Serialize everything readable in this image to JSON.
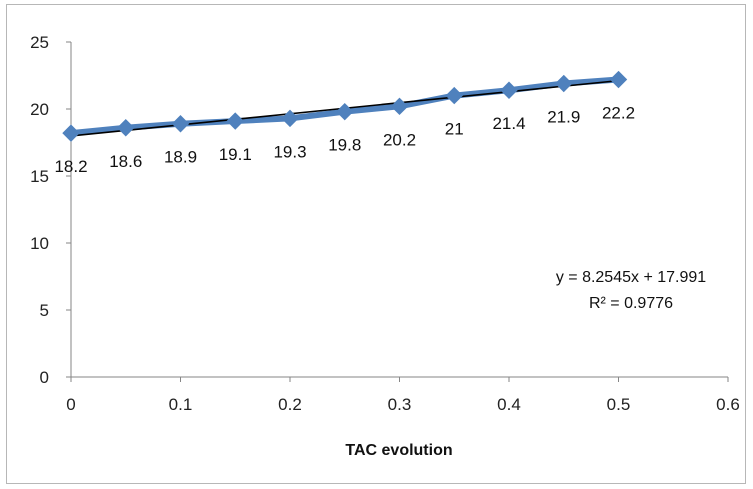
{
  "chart_data": {
    "type": "scatter",
    "title": "",
    "xlabel": "TAC evolution",
    "ylabel": "",
    "xlim": [
      0,
      0.6
    ],
    "ylim": [
      0,
      25
    ],
    "x_ticks": [
      "0",
      "0.1",
      "0.2",
      "0.3",
      "0.4",
      "0.5",
      "0.6"
    ],
    "y_ticks": [
      "0",
      "5",
      "10",
      "15",
      "20",
      "25"
    ],
    "grid": "horizontal",
    "series": [
      {
        "x": [
          0,
          0.05,
          0.1,
          0.15,
          0.2,
          0.25,
          0.3,
          0.35,
          0.4,
          0.45,
          0.5
        ],
        "values": [
          18.2,
          18.6,
          18.9,
          19.1,
          19.3,
          19.8,
          20.2,
          21,
          21.4,
          21.9,
          22.2
        ],
        "labels": [
          "18.2",
          "18.6",
          "18.9",
          "19.1",
          "19.3",
          "19.8",
          "20.2",
          "21",
          "21.4",
          "21.9",
          "22.2"
        ],
        "color": "#4f81bd",
        "marker": "diamond"
      }
    ],
    "trendline": {
      "slope": 8.2545,
      "intercept": 17.991,
      "color": "#000000",
      "equation": "y = 8.2545x + 17.991",
      "r_squared": "R² = 0.9776"
    }
  }
}
